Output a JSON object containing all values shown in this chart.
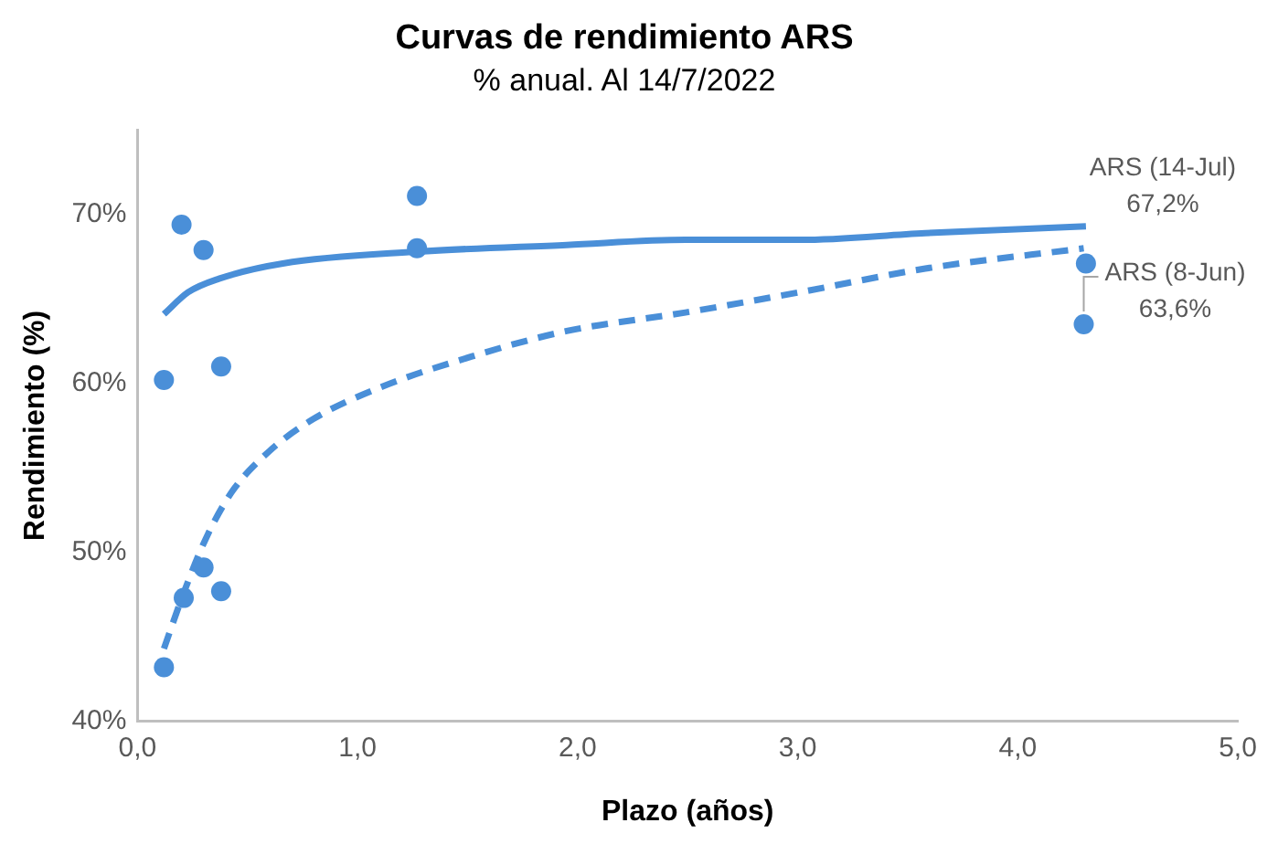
{
  "chart_data": {
    "type": "scatter",
    "title": "Curvas de rendimiento ARS",
    "subtitle": "% anual. Al 14/7/2022",
    "xlabel": "Plazo (años)",
    "ylabel": "Rendimiento (%)",
    "xlim": [
      0,
      5
    ],
    "ylim": [
      40,
      75
    ],
    "xticks": [
      {
        "value": 0,
        "label": "0,0"
      },
      {
        "value": 1,
        "label": "1,0"
      },
      {
        "value": 2,
        "label": "2,0"
      },
      {
        "value": 3,
        "label": "3,0"
      },
      {
        "value": 4,
        "label": "4,0"
      },
      {
        "value": 5,
        "label": "5,0"
      }
    ],
    "yticks": [
      {
        "value": 40,
        "label": "40%"
      },
      {
        "value": 50,
        "label": "50%"
      },
      {
        "value": 60,
        "label": "60%"
      },
      {
        "value": 70,
        "label": "70%"
      }
    ],
    "grid": false,
    "legend": false,
    "series": [
      {
        "color": "#4a8fd8",
        "marker": "circle",
        "x": [
          0.12,
          0.2,
          0.3,
          0.38,
          1.27,
          4.31
        ],
        "values": [
          60.2,
          69.4,
          67.9,
          61.0,
          71.1,
          67.1
        ]
      },
      {
        "color": "#4a8fd8",
        "marker": "circle",
        "x": [
          0.12,
          0.21,
          0.3,
          0.38,
          1.27,
          4.3
        ],
        "values": [
          43.2,
          47.3,
          49.1,
          47.7,
          68.0,
          63.5
        ]
      },
      {
        "type": "line",
        "color": "#4a8fd8",
        "marker": "none",
        "line_style": "solid",
        "x": [
          0.12,
          0.23,
          0.37,
          0.66,
          1.27,
          1.95,
          2.49,
          3.01,
          3.58,
          4.31
        ],
        "values": [
          64.1,
          65.4,
          66.2,
          67.1,
          67.8,
          68.2,
          68.5,
          68.5,
          68.9,
          69.3
        ]
      },
      {
        "type": "line",
        "color": "#4a8fd8",
        "marker": "none",
        "line_style": "dashed",
        "x": [
          0.12,
          0.21,
          0.31,
          0.43,
          0.6,
          0.8,
          1.09,
          1.52,
          1.95,
          2.49,
          3.01,
          3.58,
          4.3
        ],
        "values": [
          44.3,
          47.6,
          50.8,
          53.6,
          56.0,
          57.9,
          59.7,
          61.6,
          63.1,
          64.2,
          65.4,
          66.8,
          68.0
        ]
      }
    ],
    "annotations": [
      {
        "text": "ARS (14-Jul)\n67,2%",
        "x": 4.31,
        "y": 67.1
      },
      {
        "text": "ARS (8-Jun)\n63,6%",
        "x": 4.3,
        "y": 63.5
      }
    ]
  }
}
